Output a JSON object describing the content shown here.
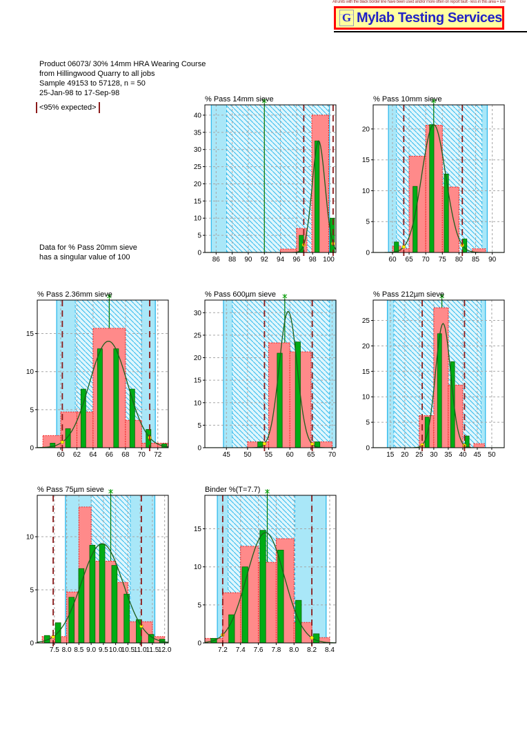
{
  "header": {
    "fine_print": "All units with the black border line have been used and/or more often on report fault - less in this area = low",
    "logo": {
      "monogram": "G",
      "text": "Mylab Testing Services",
      "bg": "#FFFFA0",
      "border": "#FF0000",
      "text_color": "#2222C6"
    }
  },
  "info": {
    "line1": "Product 06073/ 30% 14mm HRA Wearing Course",
    "line2": "from Hillingwood Quarry to all jobs",
    "line3": "Sample 49153 to 57128, n = 50",
    "line4": "25-Jan-98 to 17-Sep-98"
  },
  "legend": {
    "expected": "<95% expected>"
  },
  "note": {
    "line1": "Data for % Pass 20mm sieve",
    "line2": " has a singular value of 100"
  },
  "colors": {
    "band": "#A9E7F8",
    "band_light": "#DFF6FD",
    "hatch": "#2FB9EC",
    "bar_fill": "#FF8A8A",
    "bar_edge": "#F02020",
    "green_fill": "#00AC15",
    "green_edge": "#046404",
    "curve": "#1C5E1C",
    "limit": "#8B1A1A",
    "target": "#007700",
    "grid": "#A5A5A5",
    "dot": "#FFF200",
    "axis": "#000000"
  },
  "chart_data": [
    {
      "type": "bar",
      "subtype": "histogram-with-normal-curve",
      "title": "% Pass 14mm sieve",
      "col": 2,
      "row": 1,
      "xlim": [
        84.6,
        100.9
      ],
      "ylim": [
        0,
        43
      ],
      "xticks": [
        86,
        88,
        90,
        92,
        94,
        96,
        98,
        100
      ],
      "yticks": [
        0,
        5,
        10,
        15,
        20,
        25,
        30,
        35,
        40
      ],
      "decimals": 0,
      "band_solid": [
        85.4,
        100.1
      ],
      "band_hatch": [
        87.3,
        100.1
      ],
      "red_bars": [
        [
          94,
          96,
          1
        ],
        [
          96,
          97.3,
          7
        ],
        [
          97.9,
          100,
          40
        ]
      ],
      "green_bars": {
        "width": 0.55,
        "bars": [
          [
            96.6,
            5
          ],
          [
            98.55,
            32.5
          ],
          [
            100.45,
            10
          ]
        ]
      },
      "limits_95pct": [
        96.9,
        100.55
      ],
      "target": 92,
      "curve": {
        "mean": 98.75,
        "sd": 0.8,
        "peak": 32.5
      }
    },
    {
      "type": "bar",
      "subtype": "histogram-with-normal-curve",
      "title": "% Pass 10mm sieve",
      "col": 3,
      "row": 1,
      "xlim": [
        54.2,
        93.6
      ],
      "ylim": [
        0,
        23.9
      ],
      "xticks": [
        60,
        65,
        70,
        75,
        80,
        85,
        90
      ],
      "yticks": [
        0,
        5,
        10,
        15,
        20
      ],
      "decimals": 0,
      "band_solid": [
        58.8,
        88.5
      ],
      "band_hatch": [
        61.2,
        86.9
      ],
      "red_bars": [
        [
          60,
          62.5,
          1
        ],
        [
          62.5,
          65,
          0.6
        ],
        [
          65,
          70,
          15.6
        ],
        [
          70,
          75,
          20.6
        ],
        [
          75,
          80,
          10.6
        ],
        [
          84,
          88,
          0.6
        ]
      ],
      "green_bars": {
        "width": 1.3,
        "bars": [
          [
            61.2,
            1.7
          ],
          [
            66.8,
            10.7
          ],
          [
            71.8,
            20.7
          ],
          [
            76.2,
            12.7
          ],
          [
            81.7,
            2.2
          ]
        ]
      },
      "limits_95pct": [
        63.4,
        81.0
      ],
      "target": 72.4,
      "curve": {
        "mean": 72.4,
        "sd": 3.6,
        "peak": 20.7
      }
    },
    {
      "type": "bar",
      "subtype": "histogram-with-normal-curve",
      "title": "% Pass 2.36mm sieve",
      "col": 1,
      "row": 2,
      "xlim": [
        57.1,
        73.3
      ],
      "ylim": [
        0,
        19.4
      ],
      "xticks": [
        60,
        62,
        64,
        66,
        68,
        70,
        72
      ],
      "yticks": [
        0,
        5,
        10,
        15
      ],
      "decimals": 0,
      "band_solid": [
        59.5,
        71.7
      ],
      "band_hatch": [
        61.8,
        70.0
      ],
      "red_bars": [
        [
          57.8,
          60,
          1.6
        ],
        [
          60,
          62,
          4.7
        ],
        [
          62,
          64,
          4.7
        ],
        [
          64,
          68,
          15.7
        ],
        [
          68,
          70,
          3.6
        ],
        [
          70,
          72,
          0.6
        ],
        [
          72,
          73.3,
          0.6
        ]
      ],
      "green_bars": {
        "width": 0.6,
        "bars": [
          [
            59,
            0.6
          ],
          [
            60.9,
            2.5
          ],
          [
            62.8,
            7.7
          ],
          [
            64.85,
            13
          ],
          [
            66.85,
            13
          ],
          [
            68.85,
            7.7
          ],
          [
            70.85,
            2.4
          ],
          [
            72.8,
            0.5
          ]
        ]
      },
      "limits_95pct": [
        60.2,
        71.0
      ],
      "target": 66,
      "curve": {
        "mean": 65.9,
        "sd": 2.35,
        "peak": 14
      }
    },
    {
      "type": "bar",
      "subtype": "histogram-with-normal-curve",
      "title": "% Pass 600µm sieve",
      "col": 2,
      "row": 2,
      "xlim": [
        39.9,
        70.9
      ],
      "ylim": [
        0,
        32.8
      ],
      "xticks": [
        45,
        50,
        55,
        60,
        65,
        70
      ],
      "yticks": [
        0,
        5,
        10,
        15,
        20,
        25,
        30
      ],
      "decimals": 0,
      "band_solid": [
        44.3,
        70.9
      ],
      "band_hatch": [
        46.4,
        69.4
      ],
      "red_bars": [
        [
          50,
          55,
          1.3
        ],
        [
          55,
          60,
          23.3
        ],
        [
          60,
          65,
          21.3
        ],
        [
          65,
          70,
          1.3
        ]
      ],
      "green_bars": {
        "width": 1.2,
        "bars": [
          [
            53,
            1.3
          ],
          [
            57.6,
            21
          ],
          [
            61.9,
            23.5
          ],
          [
            66.5,
            1.3
          ]
        ]
      },
      "limits_95pct": [
        54.0,
        65.3
      ],
      "target": 58.8,
      "curve": {
        "mean": 59.6,
        "sd": 2.1,
        "peak": 30.3
      }
    },
    {
      "type": "bar",
      "subtype": "histogram-with-normal-curve",
      "title": "% Pass 212µm sieve",
      "col": 3,
      "row": 2,
      "xlim": [
        9.1,
        54.3
      ],
      "ylim": [
        0,
        29
      ],
      "xticks": [
        15,
        20,
        25,
        30,
        35,
        40,
        45,
        50
      ],
      "yticks": [
        0,
        5,
        10,
        15,
        20,
        25
      ],
      "decimals": 0,
      "band_solid": [
        14.0,
        47.8
      ],
      "band_hatch": [
        16.2,
        46.3
      ],
      "red_bars": [
        [
          25,
          30,
          6.3
        ],
        [
          30,
          35,
          27.5
        ],
        [
          35,
          40,
          12.3
        ],
        [
          40,
          42.5,
          0.8
        ],
        [
          43.8,
          47.5,
          0.8
        ]
      ],
      "green_bars": {
        "width": 1.4,
        "bars": [
          [
            27.7,
            6
          ],
          [
            32,
            22.4
          ],
          [
            36.5,
            16.9
          ],
          [
            41.5,
            2.3
          ]
        ]
      },
      "limits_95pct": [
        26.0,
        40.6
      ],
      "target": 32.8,
      "curve": {
        "mean": 33.2,
        "sd": 2.6,
        "peak": 24.4
      }
    },
    {
      "type": "bar",
      "subtype": "histogram-with-normal-curve",
      "title": "% Pass 75µm sieve",
      "col": 1,
      "row": 3,
      "xlim": [
        6.8,
        12.15
      ],
      "ylim": [
        0,
        13.9
      ],
      "xticks": [
        7.5,
        8.0,
        8.5,
        9.0,
        9.5,
        10.0,
        10.5,
        11.0,
        11.5,
        12.0
      ],
      "yticks": [
        0,
        5,
        10
      ],
      "decimals": 1,
      "band_solid": [
        7.95,
        11.6
      ],
      "band_hatch": [
        9.0,
        10.6
      ],
      "red_bars": [
        [
          7.0,
          7.5,
          0.6
        ],
        [
          7.5,
          8.0,
          0.6
        ],
        [
          8.0,
          8.5,
          4.8
        ],
        [
          8.5,
          9.0,
          12.8
        ],
        [
          9.0,
          9.5,
          7.7
        ],
        [
          9.5,
          10.0,
          7.7
        ],
        [
          10.0,
          10.5,
          5.7
        ],
        [
          10.5,
          11.5,
          2.0
        ],
        [
          11.5,
          12.0,
          0.6
        ]
      ],
      "green_bars": {
        "width": 0.22,
        "bars": [
          [
            7.2,
            0.7
          ],
          [
            7.65,
            1.9
          ],
          [
            8.2,
            4.3
          ],
          [
            8.6,
            7.0
          ],
          [
            9.05,
            9.2
          ],
          [
            9.45,
            9.3
          ],
          [
            9.95,
            7.3
          ],
          [
            10.45,
            4.6
          ],
          [
            10.95,
            2.2
          ],
          [
            11.45,
            0.8
          ],
          [
            11.9,
            0.35
          ]
        ]
      },
      "limits_95pct": [
        7.45,
        11.05
      ],
      "target": 9.8,
      "curve": {
        "mean": 9.45,
        "sd": 0.85,
        "peak": 9.35
      }
    },
    {
      "type": "bar",
      "subtype": "histogram-with-normal-curve",
      "title": "Binder %(T=7.7)",
      "col": 2,
      "row": 3,
      "xlim": [
        7.0,
        8.47
      ],
      "ylim": [
        0,
        19.4
      ],
      "xticks": [
        7.2,
        7.4,
        7.6,
        7.8,
        8.0,
        8.2,
        8.4
      ],
      "yticks": [
        0,
        5,
        10,
        15
      ],
      "decimals": 1,
      "band_solid": [
        7.14,
        8.36
      ],
      "band_hatch": [
        7.26,
        8.01
      ],
      "red_bars": [
        [
          7.0,
          7.2,
          0.6
        ],
        [
          7.2,
          7.4,
          6.6
        ],
        [
          7.4,
          7.6,
          12.7
        ],
        [
          7.6,
          7.8,
          10.6
        ],
        [
          7.8,
          8.0,
          13.7
        ],
        [
          8.0,
          8.2,
          2.7
        ],
        [
          8.2,
          8.4,
          0.7
        ]
      ],
      "green_bars": {
        "width": 0.065,
        "bars": [
          [
            7.1,
            0.6
          ],
          [
            7.3,
            3.7
          ],
          [
            7.45,
            10.0
          ],
          [
            7.65,
            14.8
          ],
          [
            7.85,
            12.2
          ],
          [
            8.05,
            5.6
          ],
          [
            8.25,
            1.2
          ]
        ]
      },
      "limits_95pct": [
        7.2,
        8.2
      ],
      "target": 7.7,
      "curve": {
        "mean": 7.68,
        "sd": 0.21,
        "peak": 14.5
      }
    }
  ]
}
